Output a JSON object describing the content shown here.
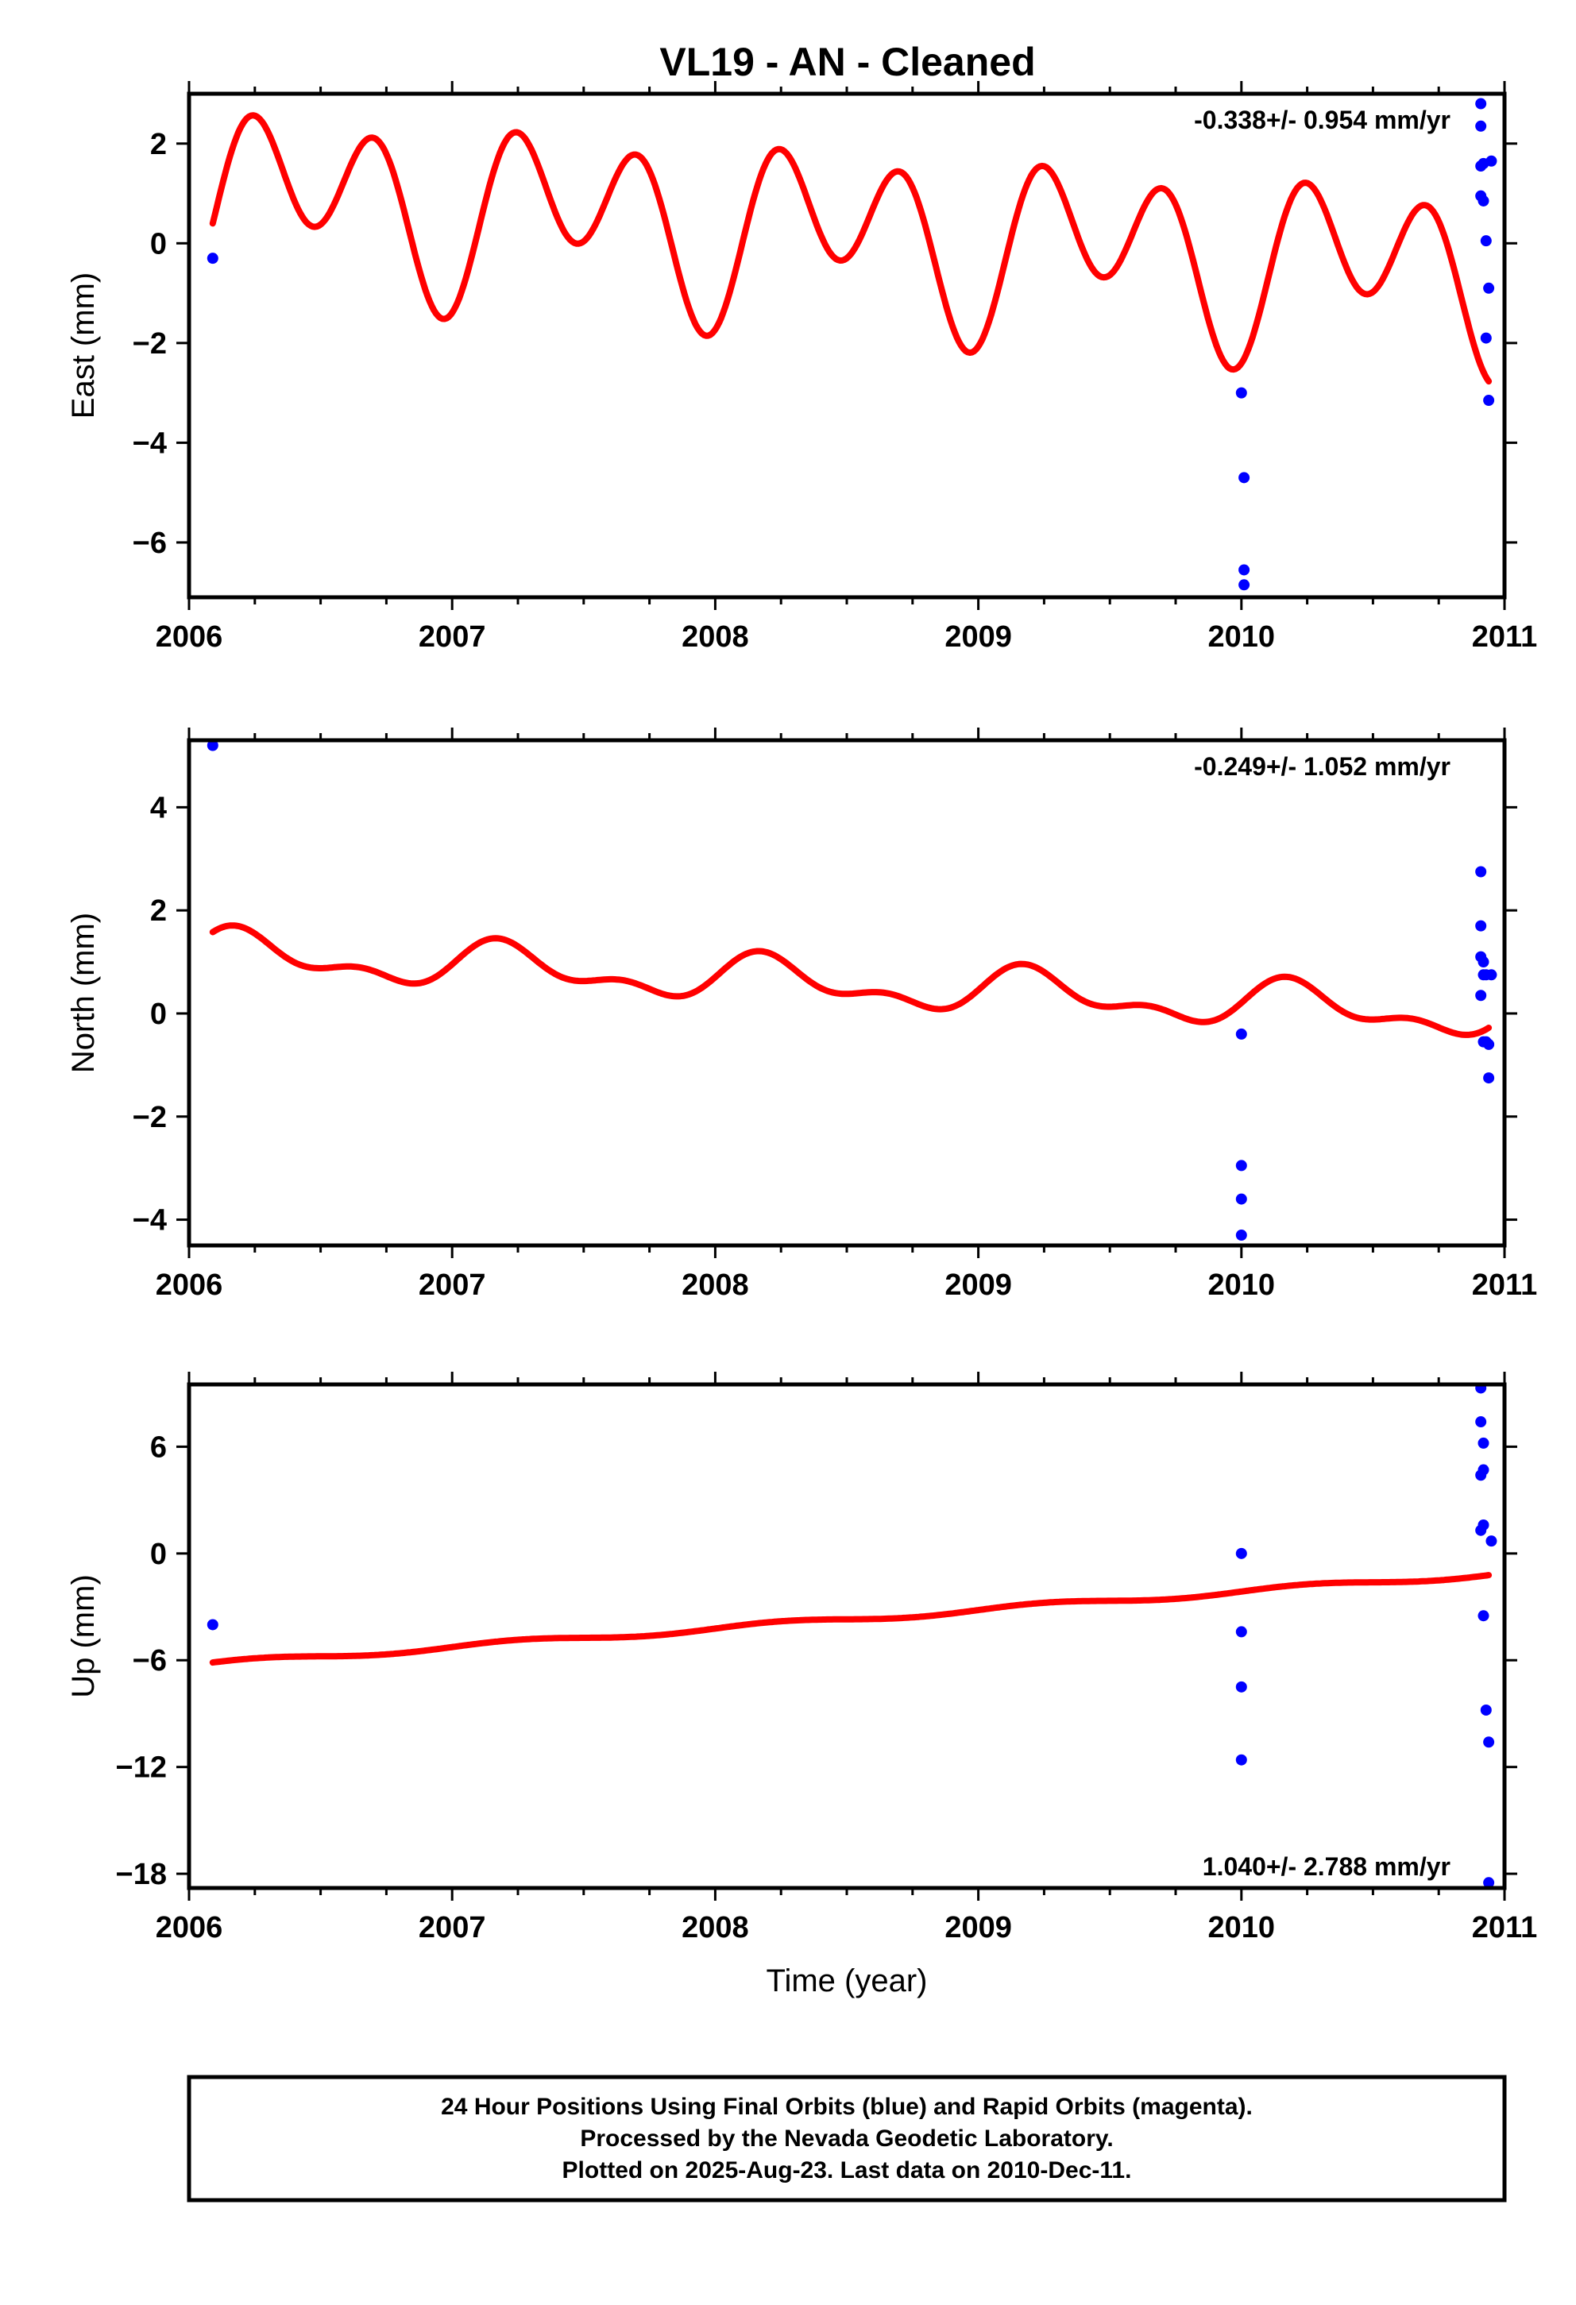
{
  "title": "VL19  - AN - Cleaned",
  "colors": {
    "model": "#ff0000",
    "final_orbits": "#0000ff",
    "axis": "#000000"
  },
  "footer": {
    "line1": "24 Hour Positions Using Final Orbits (blue) and Rapid Orbits (magenta).",
    "line2": "Processed by the Nevada Geodetic Laboratory.",
    "line3": "Plotted on 2025-Aug-23. Last data on 2010-Dec-11."
  },
  "chart_data": [
    {
      "type": "scatter",
      "panel": "east",
      "ylabel": "East (mm)",
      "xlabel": "",
      "xlim": [
        2006,
        2011
      ],
      "ylim": [
        -7.1,
        3.0
      ],
      "xticks": [
        2006,
        2007,
        2008,
        2009,
        2010,
        2011
      ],
      "yticks": [
        -6,
        -4,
        -2,
        0,
        2
      ],
      "ytick_labels": [
        "−6",
        "−4",
        "−2",
        "0",
        "2"
      ],
      "rate_label": "-0.338+/- 0.954 mm/yr",
      "rate_position": "top-right",
      "model": {
        "offset": 0.2,
        "trend": -0.338,
        "x0": 2008.5,
        "annual_sin": 0.3,
        "annual_cos": -0.8,
        "semiannual_sin": 0.5,
        "semiannual_cos": -1.3,
        "x_start": 2006.09,
        "x_end": 2010.94
      },
      "points": [
        [
          2006.09,
          -0.3
        ],
        [
          2010.0,
          -3.0
        ],
        [
          2010.01,
          -4.7
        ],
        [
          2010.01,
          -6.55
        ],
        [
          2010.01,
          -6.85
        ],
        [
          2010.91,
          2.8
        ],
        [
          2010.91,
          2.35
        ],
        [
          2010.91,
          1.55
        ],
        [
          2010.91,
          0.95
        ],
        [
          2010.92,
          0.85
        ],
        [
          2010.92,
          1.6
        ],
        [
          2010.93,
          0.05
        ],
        [
          2010.93,
          -1.9
        ],
        [
          2010.94,
          -3.15
        ],
        [
          2010.95,
          1.65
        ],
        [
          2010.94,
          -0.9
        ]
      ]
    },
    {
      "type": "scatter",
      "panel": "north",
      "ylabel": "North (mm)",
      "xlabel": "",
      "xlim": [
        2006,
        2011
      ],
      "ylim": [
        -4.5,
        5.3
      ],
      "xticks": [
        2006,
        2007,
        2008,
        2009,
        2010,
        2011
      ],
      "yticks": [
        -4,
        -2,
        0,
        2,
        4
      ],
      "ytick_labels": [
        "−4",
        "−2",
        "0",
        "2",
        "4"
      ],
      "rate_label": "-0.249+/- 1.052 mm/yr",
      "rate_position": "top-right",
      "model": {
        "offset": 0.56,
        "trend": -0.249,
        "x0": 2008.5,
        "annual_sin": 0.35,
        "annual_cos": 0.1,
        "semiannual_sin": 0.2,
        "semiannual_cos": -0.08,
        "x_start": 2006.09,
        "x_end": 2010.94
      },
      "points": [
        [
          2006.09,
          5.2
        ],
        [
          2010.0,
          -0.4
        ],
        [
          2010.0,
          -2.95
        ],
        [
          2010.0,
          -3.6
        ],
        [
          2010.0,
          -4.3
        ],
        [
          2010.91,
          2.75
        ],
        [
          2010.91,
          1.7
        ],
        [
          2010.91,
          1.1
        ],
        [
          2010.92,
          1.0
        ],
        [
          2010.92,
          0.75
        ],
        [
          2010.93,
          0.75
        ],
        [
          2010.95,
          0.75
        ],
        [
          2010.91,
          0.35
        ],
        [
          2010.92,
          -0.55
        ],
        [
          2010.93,
          -0.55
        ],
        [
          2010.94,
          -0.6
        ],
        [
          2010.94,
          -1.25
        ]
      ]
    },
    {
      "type": "scatter",
      "panel": "up",
      "ylabel": "Up (mm)",
      "xlabel": "Time (year)",
      "xlim": [
        2006,
        2011
      ],
      "ylim": [
        -18.8,
        9.5
      ],
      "xticks": [
        2006,
        2007,
        2008,
        2009,
        2010,
        2011
      ],
      "yticks": [
        -18,
        -12,
        -6,
        0,
        6
      ],
      "ytick_labels": [
        "−18",
        "−12",
        "−6",
        "0",
        "6"
      ],
      "rate_label": "1.040+/- 2.788 mm/yr",
      "rate_position": "bottom-right",
      "model": {
        "offset": -3.7,
        "trend": 1.04,
        "x0": 2008.5,
        "annual_sin": 0.15,
        "annual_cos": 0.0,
        "semiannual_sin": 0.0,
        "semiannual_cos": 0.0,
        "x_start": 2006.09,
        "x_end": 2010.94
      },
      "points": [
        [
          2006.09,
          -4.0
        ],
        [
          2010.0,
          0.0
        ],
        [
          2010.0,
          -4.4
        ],
        [
          2010.0,
          -7.5
        ],
        [
          2010.0,
          -11.6
        ],
        [
          2010.91,
          9.3
        ],
        [
          2010.91,
          7.4
        ],
        [
          2010.92,
          6.2
        ],
        [
          2010.92,
          4.7
        ],
        [
          2010.91,
          4.4
        ],
        [
          2010.92,
          1.6
        ],
        [
          2010.91,
          1.3
        ],
        [
          2010.95,
          0.7
        ],
        [
          2010.92,
          -3.5
        ],
        [
          2010.93,
          -8.8
        ],
        [
          2010.94,
          -10.6
        ],
        [
          2010.94,
          -18.5
        ]
      ]
    }
  ]
}
